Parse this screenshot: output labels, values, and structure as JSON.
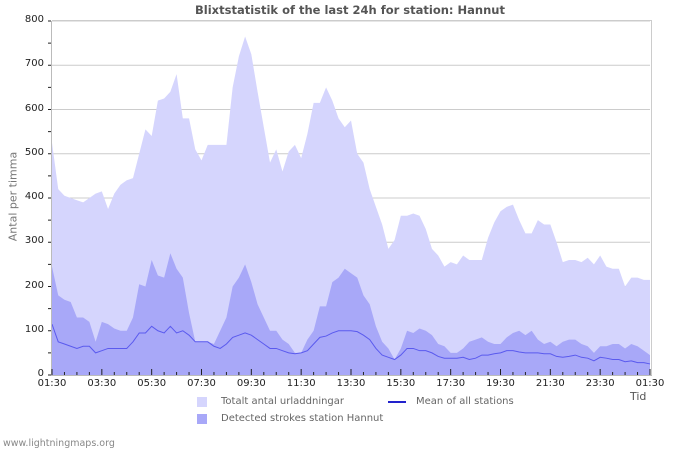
{
  "header": {
    "title": "Blixtstatistik of the last 24h for station: Hannut"
  },
  "axes": {
    "ylabel": "Antal per timma",
    "xlabel": "Tid",
    "yticks": [
      "800",
      "700",
      "600",
      "500",
      "400",
      "300",
      "200",
      "100",
      "0"
    ],
    "xticks": [
      "01:30",
      "03:30",
      "05:30",
      "07:30",
      "09:30",
      "11:30",
      "13:30",
      "15:30",
      "17:30",
      "19:30",
      "21:30",
      "23:30",
      "01:30"
    ]
  },
  "legend": {
    "total_label": "Totalt antal urladdningar",
    "station_label": "Detected strokes station Hannut",
    "mean_label": "Mean of all stations"
  },
  "colors": {
    "total": "#d5d5fd",
    "station": "#a8a8f8",
    "mean": "#2222cc",
    "grid": "#cccccc"
  },
  "footer": {
    "site": "www.lightningmaps.org"
  },
  "chart_data": {
    "type": "area",
    "title": "Blixtstatistik of the last 24h for station: Hannut",
    "xlabel": "Tid",
    "ylabel": "Antal per timma",
    "ylim": [
      0,
      800
    ],
    "grid": true,
    "legend_position": "bottom",
    "x_start": "01:30",
    "x_end": "01:30",
    "interval_minutes": 15,
    "categories": [
      "01:30",
      "03:30",
      "05:30",
      "07:30",
      "09:30",
      "11:30",
      "13:30",
      "15:30",
      "17:30",
      "19:30",
      "21:30",
      "23:30",
      "01:30"
    ],
    "series": [
      {
        "name": "Totalt antal urladdningar",
        "type": "area",
        "values": [
          525,
          420,
          405,
          400,
          395,
          390,
          400,
          410,
          415,
          375,
          410,
          430,
          440,
          445,
          500,
          555,
          540,
          620,
          625,
          640,
          680,
          580,
          580,
          510,
          485,
          520,
          520,
          520,
          520,
          650,
          720,
          765,
          725,
          640,
          560,
          480,
          510,
          460,
          505,
          520,
          490,
          545,
          615,
          615,
          650,
          620,
          580,
          560,
          575,
          500,
          480,
          420,
          380,
          340,
          285,
          305,
          360,
          360,
          365,
          360,
          330,
          285,
          270,
          245,
          255,
          250,
          270,
          260,
          260,
          260,
          310,
          345,
          370,
          380,
          385,
          350,
          320,
          320,
          350,
          340,
          340,
          300,
          255,
          260,
          260,
          255,
          265,
          250,
          270,
          245,
          240,
          240,
          200,
          220,
          220,
          215,
          215
        ],
        "color": "#d5d5fd"
      },
      {
        "name": "Detected strokes station Hannut",
        "type": "area",
        "values": [
          245,
          180,
          170,
          165,
          130,
          130,
          120,
          75,
          120,
          115,
          105,
          100,
          100,
          130,
          205,
          200,
          260,
          225,
          220,
          275,
          240,
          220,
          140,
          75,
          75,
          75,
          70,
          100,
          130,
          200,
          220,
          250,
          210,
          160,
          130,
          100,
          100,
          80,
          70,
          50,
          50,
          80,
          100,
          155,
          155,
          210,
          220,
          240,
          230,
          220,
          180,
          160,
          110,
          75,
          60,
          35,
          60,
          100,
          95,
          105,
          100,
          90,
          70,
          65,
          50,
          50,
          60,
          75,
          80,
          85,
          75,
          70,
          70,
          85,
          95,
          100,
          90,
          100,
          80,
          70,
          75,
          65,
          75,
          80,
          80,
          70,
          65,
          50,
          65,
          65,
          70,
          70,
          60,
          70,
          65,
          55,
          45
        ],
        "color": "#a8a8f8"
      },
      {
        "name": "Mean of all stations",
        "type": "line",
        "values": [
          115,
          75,
          70,
          65,
          60,
          65,
          65,
          50,
          55,
          60,
          60,
          60,
          60,
          75,
          95,
          95,
          110,
          100,
          95,
          110,
          95,
          100,
          90,
          75,
          75,
          75,
          65,
          60,
          70,
          85,
          90,
          95,
          90,
          80,
          70,
          60,
          60,
          55,
          50,
          48,
          50,
          55,
          70,
          85,
          88,
          95,
          100,
          100,
          100,
          98,
          90,
          80,
          60,
          45,
          40,
          35,
          45,
          60,
          60,
          55,
          55,
          50,
          42,
          38,
          38,
          38,
          40,
          35,
          38,
          45,
          45,
          48,
          50,
          55,
          55,
          52,
          50,
          50,
          50,
          48,
          48,
          42,
          40,
          42,
          45,
          40,
          38,
          32,
          40,
          38,
          35,
          35,
          30,
          32,
          28,
          28,
          25
        ],
        "color": "#2222cc"
      }
    ]
  }
}
